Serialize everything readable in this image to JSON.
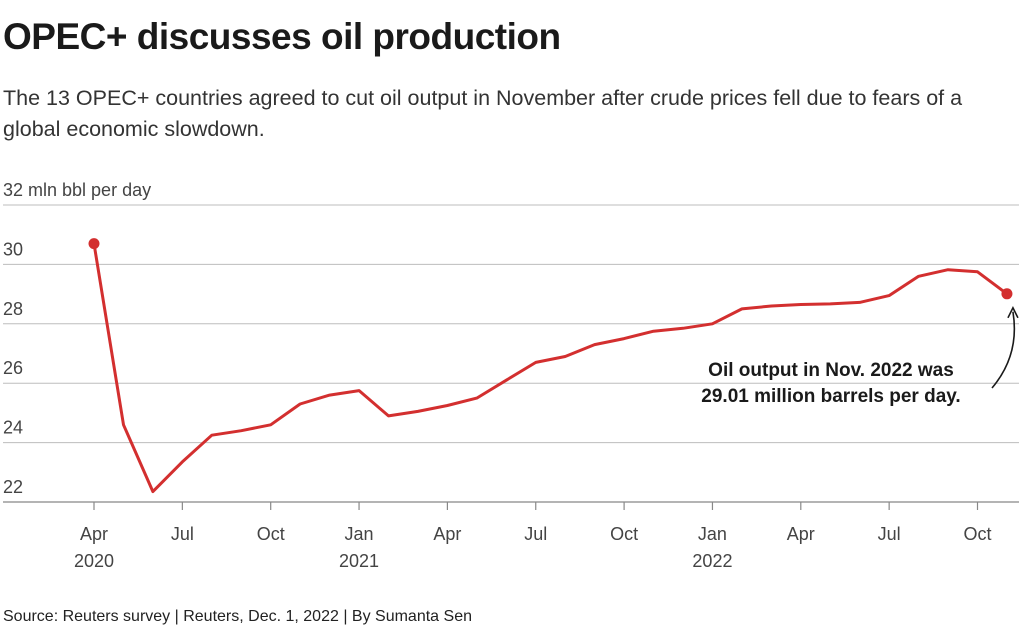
{
  "header": {
    "title": "OPEC+ discusses oil production",
    "subtitle": "The 13 OPEC+ countries agreed to cut oil output in November after crude prices fell due to fears of a global economic slowdown."
  },
  "footer": {
    "source": "Source: Reuters survey | Reuters, Dec. 1, 2022 | By Sumanta Sen"
  },
  "chart_data": {
    "type": "line",
    "title": "OPEC+ discusses oil production",
    "ylabel": "32 mln bbl per day",
    "ylim": [
      22,
      32
    ],
    "yticks": [
      22,
      24,
      26,
      28,
      30,
      32
    ],
    "ytick_labels": [
      "22",
      "24",
      "26",
      "28",
      "30",
      "32 mln bbl per day"
    ],
    "grid": true,
    "line_color": "#d32f2f",
    "x": [
      "2020-04",
      "2020-05",
      "2020-06",
      "2020-07",
      "2020-08",
      "2020-09",
      "2020-10",
      "2020-11",
      "2020-12",
      "2021-01",
      "2021-02",
      "2021-03",
      "2021-04",
      "2021-05",
      "2021-06",
      "2021-07",
      "2021-08",
      "2021-09",
      "2021-10",
      "2021-11",
      "2021-12",
      "2022-01",
      "2022-02",
      "2022-03",
      "2022-04",
      "2022-05",
      "2022-06",
      "2022-07",
      "2022-08",
      "2022-09",
      "2022-10",
      "2022-11"
    ],
    "values": [
      30.7,
      24.6,
      22.35,
      23.35,
      24.25,
      24.4,
      24.6,
      25.3,
      25.6,
      25.75,
      24.9,
      25.05,
      25.25,
      25.5,
      26.1,
      26.7,
      26.9,
      27.3,
      27.5,
      27.75,
      27.85,
      28.0,
      28.5,
      28.6,
      28.65,
      28.67,
      28.72,
      28.95,
      29.6,
      29.82,
      29.75,
      29.01
    ],
    "xticks": [
      {
        "month": "2020-04",
        "label": "Apr",
        "year": "2020"
      },
      {
        "month": "2020-07",
        "label": "Jul",
        "year": ""
      },
      {
        "month": "2020-10",
        "label": "Oct",
        "year": ""
      },
      {
        "month": "2021-01",
        "label": "Jan",
        "year": "2021"
      },
      {
        "month": "2021-04",
        "label": "Apr",
        "year": ""
      },
      {
        "month": "2021-07",
        "label": "Jul",
        "year": ""
      },
      {
        "month": "2021-10",
        "label": "Oct",
        "year": ""
      },
      {
        "month": "2022-01",
        "label": "Jan",
        "year": "2022"
      },
      {
        "month": "2022-04",
        "label": "Apr",
        "year": ""
      },
      {
        "month": "2022-07",
        "label": "Jul",
        "year": ""
      },
      {
        "month": "2022-10",
        "label": "Oct",
        "year": ""
      }
    ],
    "highlighted_points": [
      "2020-04",
      "2022-11"
    ],
    "annotation": {
      "line1": "Oil output in Nov. 2022 was",
      "line2": "29.01 million barrels per day.",
      "target": "2022-11"
    }
  }
}
